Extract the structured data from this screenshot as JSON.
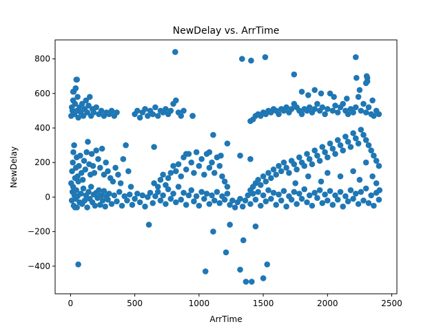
{
  "chart_data": {
    "type": "scatter",
    "title": "NewDelay vs. ArrTime",
    "xlabel": "ArrTime",
    "ylabel": "NewDelay",
    "xlim": [
      -120,
      2540
    ],
    "ylim": [
      -560,
      910
    ],
    "xticks": [
      0,
      500,
      1000,
      1500,
      2000,
      2500
    ],
    "yticks": [
      -400,
      -200,
      0,
      200,
      400,
      600,
      800
    ],
    "xtick_labels": [
      "0",
      "500",
      "1000",
      "1500",
      "2000",
      "2500"
    ],
    "ytick_labels": [
      "−400",
      "−200",
      "0",
      "200",
      "400",
      "600",
      "800"
    ],
    "grid": false,
    "marker_color": "#1f77b4",
    "points": [
      [
        10,
        -20
      ],
      [
        15,
        30
      ],
      [
        20,
        60
      ],
      [
        25,
        -50
      ],
      [
        30,
        10
      ],
      [
        35,
        110
      ],
      [
        40,
        -10
      ],
      [
        45,
        40
      ],
      [
        50,
        -60
      ],
      [
        55,
        5
      ],
      [
        60,
        90
      ],
      [
        70,
        -30
      ],
      [
        80,
        20
      ],
      [
        90,
        -40
      ],
      [
        100,
        50
      ],
      [
        110,
        -20
      ],
      [
        120,
        10
      ],
      [
        130,
        -60
      ],
      [
        140,
        30
      ],
      [
        150,
        -10
      ],
      [
        160,
        60
      ],
      [
        170,
        -30
      ],
      [
        180,
        15
      ],
      [
        190,
        -50
      ],
      [
        200,
        25
      ],
      [
        210,
        -5
      ],
      [
        220,
        40
      ],
      [
        230,
        -45
      ],
      [
        240,
        10
      ],
      [
        250,
        -20
      ],
      [
        260,
        35
      ],
      [
        270,
        -55
      ],
      [
        280,
        5
      ],
      [
        290,
        -15
      ],
      [
        300,
        20
      ],
      [
        320,
        -40
      ],
      [
        340,
        10
      ],
      [
        360,
        -25
      ],
      [
        380,
        30
      ],
      [
        400,
        -50
      ],
      [
        420,
        5
      ],
      [
        440,
        -20
      ],
      [
        460,
        15
      ],
      [
        480,
        -45
      ],
      [
        500,
        -10
      ],
      [
        520,
        20
      ],
      [
        540,
        -30
      ],
      [
        560,
        10
      ],
      [
        580,
        -55
      ],
      [
        600,
        0
      ],
      [
        620,
        25
      ],
      [
        640,
        -35
      ],
      [
        660,
        5
      ],
      [
        680,
        30
      ],
      [
        700,
        -20
      ],
      [
        720,
        10
      ],
      [
        740,
        -40
      ],
      [
        760,
        45
      ],
      [
        780,
        -10
      ],
      [
        800,
        20
      ],
      [
        820,
        -30
      ],
      [
        840,
        60
      ],
      [
        860,
        -15
      ],
      [
        880,
        25
      ],
      [
        900,
        -45
      ],
      [
        920,
        10
      ],
      [
        940,
        40
      ],
      [
        960,
        -25
      ],
      [
        980,
        5
      ],
      [
        1000,
        -50
      ],
      [
        1020,
        30
      ],
      [
        1040,
        -10
      ],
      [
        1060,
        20
      ],
      [
        1080,
        -40
      ],
      [
        1100,
        10
      ],
      [
        1120,
        -20
      ],
      [
        1140,
        30
      ],
      [
        1160,
        -35
      ],
      [
        1180,
        5
      ],
      [
        1200,
        -15
      ],
      [
        1220,
        20
      ],
      [
        1240,
        -45
      ],
      [
        1260,
        -20
      ],
      [
        1280,
        -60
      ],
      [
        1300,
        -30
      ],
      [
        1320,
        -10
      ],
      [
        1340,
        -55
      ],
      [
        1360,
        -20
      ],
      [
        1380,
        10
      ],
      [
        1400,
        -40
      ],
      [
        1420,
        20
      ],
      [
        1440,
        -15
      ],
      [
        1460,
        30
      ],
      [
        1480,
        -50
      ],
      [
        1500,
        10
      ],
      [
        1520,
        -25
      ],
      [
        1540,
        40
      ],
      [
        1560,
        -10
      ],
      [
        1580,
        25
      ],
      [
        1600,
        -45
      ],
      [
        1620,
        15
      ],
      [
        1640,
        -20
      ],
      [
        1660,
        35
      ],
      [
        1680,
        -55
      ],
      [
        1700,
        5
      ],
      [
        1720,
        -15
      ],
      [
        1740,
        30
      ],
      [
        1760,
        -40
      ],
      [
        1780,
        20
      ],
      [
        1800,
        -10
      ],
      [
        1820,
        45
      ],
      [
        1840,
        -30
      ],
      [
        1860,
        10
      ],
      [
        1880,
        -50
      ],
      [
        1900,
        25
      ],
      [
        1920,
        -5
      ],
      [
        1940,
        40
      ],
      [
        1960,
        -35
      ],
      [
        1980,
        15
      ],
      [
        2000,
        -20
      ],
      [
        2020,
        35
      ],
      [
        2040,
        -45
      ],
      [
        2060,
        10
      ],
      [
        2080,
        -15
      ],
      [
        2100,
        30
      ],
      [
        2120,
        -55
      ],
      [
        2140,
        5
      ],
      [
        2160,
        -25
      ],
      [
        2180,
        40
      ],
      [
        2200,
        -10
      ],
      [
        2220,
        20
      ],
      [
        2240,
        -40
      ],
      [
        2260,
        30
      ],
      [
        2280,
        -20
      ],
      [
        2300,
        50
      ],
      [
        2320,
        -35
      ],
      [
        2340,
        10
      ],
      [
        2360,
        -50
      ],
      [
        2380,
        25
      ],
      [
        2400,
        -15
      ],
      [
        2405,
        40
      ],
      [
        5,
        80
      ],
      [
        12,
        150
      ],
      [
        18,
        200
      ],
      [
        22,
        260
      ],
      [
        28,
        300
      ],
      [
        35,
        -60
      ],
      [
        42,
        170
      ],
      [
        48,
        230
      ],
      [
        55,
        120
      ],
      [
        65,
        180
      ],
      [
        75,
        240
      ],
      [
        85,
        140
      ],
      [
        95,
        100
      ],
      [
        105,
        210
      ],
      [
        115,
        160
      ],
      [
        125,
        260
      ],
      [
        135,
        320
      ],
      [
        145,
        190
      ],
      [
        155,
        130
      ],
      [
        165,
        250
      ],
      [
        175,
        180
      ],
      [
        185,
        140
      ],
      [
        200,
        270
      ],
      [
        215,
        220
      ],
      [
        230,
        170
      ],
      [
        245,
        280
      ],
      [
        260,
        130
      ],
      [
        275,
        200
      ],
      [
        290,
        150
      ],
      [
        310,
        110
      ],
      [
        330,
        90
      ],
      [
        350,
        170
      ],
      [
        370,
        130
      ],
      [
        390,
        80
      ],
      [
        410,
        220
      ],
      [
        430,
        300
      ],
      [
        450,
        150
      ],
      [
        470,
        60
      ],
      [
        650,
        80
      ],
      [
        680,
        60
      ],
      [
        700,
        100
      ],
      [
        720,
        130
      ],
      [
        740,
        70
      ],
      [
        760,
        110
      ],
      [
        780,
        140
      ],
      [
        800,
        180
      ],
      [
        820,
        150
      ],
      [
        840,
        190
      ],
      [
        860,
        120
      ],
      [
        880,
        230
      ],
      [
        900,
        160
      ],
      [
        920,
        250
      ],
      [
        940,
        200
      ],
      [
        960,
        140
      ],
      [
        980,
        260
      ],
      [
        1000,
        180
      ],
      [
        1020,
        220
      ],
      [
        1040,
        130
      ],
      [
        1060,
        250
      ],
      [
        1080,
        170
      ],
      [
        1100,
        200
      ],
      [
        1120,
        140
      ],
      [
        1140,
        230
      ],
      [
        1160,
        180
      ],
      [
        1180,
        120
      ],
      [
        1200,
        90
      ],
      [
        1220,
        60
      ],
      [
        1400,
        40
      ],
      [
        1420,
        60
      ],
      [
        1440,
        80
      ],
      [
        1460,
        100
      ],
      [
        1480,
        70
      ],
      [
        1500,
        120
      ],
      [
        1520,
        90
      ],
      [
        1540,
        140
      ],
      [
        1560,
        110
      ],
      [
        1580,
        160
      ],
      [
        1600,
        130
      ],
      [
        1620,
        180
      ],
      [
        1640,
        150
      ],
      [
        1660,
        200
      ],
      [
        1680,
        170
      ],
      [
        1700,
        140
      ],
      [
        1720,
        210
      ],
      [
        1740,
        190
      ],
      [
        1760,
        160
      ],
      [
        1780,
        230
      ],
      [
        1800,
        200
      ],
      [
        1820,
        180
      ],
      [
        1840,
        250
      ],
      [
        1860,
        220
      ],
      [
        1880,
        190
      ],
      [
        1900,
        270
      ],
      [
        1920,
        240
      ],
      [
        1940,
        210
      ],
      [
        1960,
        290
      ],
      [
        1980,
        260
      ],
      [
        2000,
        230
      ],
      [
        2020,
        310
      ],
      [
        2040,
        280
      ],
      [
        2060,
        250
      ],
      [
        2080,
        330
      ],
      [
        2100,
        300
      ],
      [
        2120,
        270
      ],
      [
        2140,
        350
      ],
      [
        2160,
        320
      ],
      [
        2180,
        290
      ],
      [
        2200,
        370
      ],
      [
        2220,
        340
      ],
      [
        2240,
        310
      ],
      [
        2260,
        390
      ],
      [
        2280,
        360
      ],
      [
        2300,
        330
      ],
      [
        2320,
        300
      ],
      [
        2340,
        270
      ],
      [
        2360,
        240
      ],
      [
        2380,
        210
      ],
      [
        2400,
        180
      ],
      [
        2200,
        150
      ],
      [
        2250,
        100
      ],
      [
        2300,
        200
      ],
      [
        2350,
        120
      ],
      [
        2380,
        80
      ],
      [
        2100,
        120
      ],
      [
        2000,
        140
      ],
      [
        1950,
        90
      ],
      [
        1850,
        120
      ],
      [
        1750,
        80
      ],
      [
        5,
        470
      ],
      [
        10,
        520
      ],
      [
        15,
        500
      ],
      [
        20,
        560
      ],
      [
        25,
        610
      ],
      [
        30,
        480
      ],
      [
        35,
        540
      ],
      [
        40,
        630
      ],
      [
        45,
        680
      ],
      [
        50,
        500
      ],
      [
        55,
        580
      ],
      [
        60,
        460
      ],
      [
        70,
        520
      ],
      [
        80,
        490
      ],
      [
        90,
        540
      ],
      [
        100,
        470
      ],
      [
        110,
        510
      ],
      [
        120,
        560
      ],
      [
        130,
        490
      ],
      [
        140,
        530
      ],
      [
        150,
        580
      ],
      [
        160,
        470
      ],
      [
        170,
        510
      ],
      [
        180,
        490
      ],
      [
        200,
        520
      ],
      [
        220,
        480
      ],
      [
        240,
        500
      ],
      [
        260,
        470
      ],
      [
        280,
        490
      ],
      [
        300,
        480
      ],
      [
        320,
        500
      ],
      [
        340,
        470
      ],
      [
        360,
        490
      ],
      [
        500,
        480
      ],
      [
        520,
        500
      ],
      [
        540,
        460
      ],
      [
        560,
        490
      ],
      [
        580,
        510
      ],
      [
        600,
        470
      ],
      [
        620,
        500
      ],
      [
        640,
        480
      ],
      [
        660,
        520
      ],
      [
        680,
        470
      ],
      [
        700,
        500
      ],
      [
        720,
        490
      ],
      [
        740,
        510
      ],
      [
        760,
        480
      ],
      [
        780,
        500
      ],
      [
        800,
        540
      ],
      [
        820,
        560
      ],
      [
        840,
        490
      ],
      [
        860,
        470
      ],
      [
        880,
        500
      ],
      [
        950,
        470
      ],
      [
        1400,
        440
      ],
      [
        1420,
        450
      ],
      [
        1440,
        470
      ],
      [
        1460,
        480
      ],
      [
        1480,
        470
      ],
      [
        1500,
        490
      ],
      [
        1520,
        480
      ],
      [
        1540,
        500
      ],
      [
        1560,
        490
      ],
      [
        1580,
        510
      ],
      [
        1600,
        500
      ],
      [
        1620,
        480
      ],
      [
        1640,
        510
      ],
      [
        1660,
        500
      ],
      [
        1680,
        520
      ],
      [
        1700,
        490
      ],
      [
        1720,
        510
      ],
      [
        1740,
        540
      ],
      [
        1760,
        520
      ],
      [
        1780,
        500
      ],
      [
        1800,
        480
      ],
      [
        1820,
        510
      ],
      [
        1840,
        500
      ],
      [
        1860,
        520
      ],
      [
        1880,
        490
      ],
      [
        1900,
        510
      ],
      [
        1920,
        540
      ],
      [
        1940,
        500
      ],
      [
        1960,
        520
      ],
      [
        1980,
        480
      ],
      [
        2000,
        510
      ],
      [
        2020,
        600
      ],
      [
        2040,
        500
      ],
      [
        2060,
        530
      ],
      [
        2080,
        490
      ],
      [
        2100,
        520
      ],
      [
        2120,
        540
      ],
      [
        2140,
        500
      ],
      [
        2160,
        480
      ],
      [
        2180,
        510
      ],
      [
        2200,
        490
      ],
      [
        2220,
        520
      ],
      [
        2240,
        580
      ],
      [
        2260,
        500
      ],
      [
        2280,
        540
      ],
      [
        2300,
        490
      ],
      [
        2320,
        520
      ],
      [
        2340,
        480
      ],
      [
        2360,
        470
      ],
      [
        2380,
        500
      ],
      [
        2400,
        480
      ],
      [
        1800,
        610
      ],
      [
        1850,
        590
      ],
      [
        1900,
        620
      ],
      [
        1950,
        600
      ],
      [
        2050,
        580
      ],
      [
        2150,
        570
      ],
      [
        2300,
        660
      ],
      [
        2310,
        690
      ],
      [
        2350,
        560
      ],
      [
        2250,
        620
      ],
      [
        20,
        610
      ],
      [
        40,
        630
      ],
      [
        50,
        680
      ],
      [
        815,
        840
      ],
      [
        1335,
        800
      ],
      [
        1405,
        790
      ],
      [
        1515,
        810
      ],
      [
        1740,
        710
      ],
      [
        2220,
        810
      ],
      [
        2225,
        690
      ],
      [
        2305,
        700
      ],
      [
        2310,
        670
      ],
      [
        60,
        -390
      ],
      [
        610,
        -160
      ],
      [
        1050,
        -430
      ],
      [
        1110,
        -200
      ],
      [
        1210,
        -320
      ],
      [
        1240,
        -160
      ],
      [
        1320,
        -420
      ],
      [
        1345,
        -250
      ],
      [
        1365,
        -490
      ],
      [
        1410,
        -490
      ],
      [
        1440,
        -170
      ],
      [
        1500,
        -470
      ],
      [
        1530,
        -390
      ],
      [
        1110,
        360
      ],
      [
        1220,
        310
      ],
      [
        1320,
        240
      ],
      [
        1400,
        220
      ],
      [
        950,
        470
      ],
      [
        650,
        290
      ],
      [
        900,
        250
      ],
      [
        1080,
        260
      ],
      [
        1170,
        240
      ]
    ]
  }
}
